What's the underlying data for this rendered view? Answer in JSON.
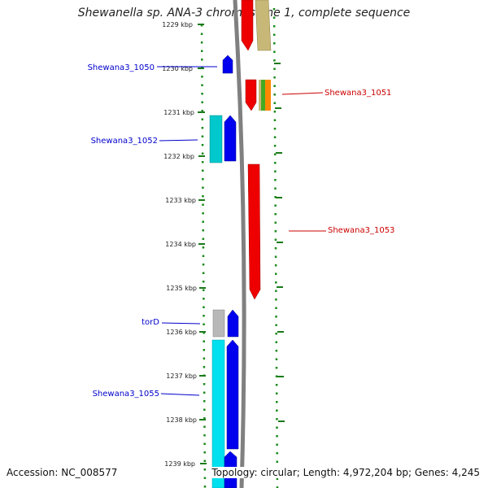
{
  "title": "Shewanella sp. ANA-3 chromosome 1, complete sequence",
  "accession": "Accession: NC_008577",
  "topology": "Topology: circular; Length: 4,972,204 bp; Genes: 4,245",
  "ticks": [
    "1229 kbp",
    "1230 kbp",
    "1231 kbp",
    "1232 kbp",
    "1233 kbp",
    "1234 kbp",
    "1235 kbp",
    "1236 kbp",
    "1237 kbp",
    "1238 kbp",
    "1239 kbp"
  ],
  "gene_labels": [
    {
      "text": "Shewana3_1050",
      "color": "#0000cc"
    },
    {
      "text": "Shewana3_1051",
      "color": "#cc0000"
    },
    {
      "text": "Shewana3_1052",
      "color": "#0000cc"
    },
    {
      "text": "Shewana3_1053",
      "color": "#cc0000"
    },
    {
      "text": "torD",
      "color": "#0000cc"
    },
    {
      "text": "Shewana3_1055",
      "color": "#0000cc"
    }
  ],
  "colors": {
    "backbone": "#7a7a7a",
    "tick": "#1a7a1a",
    "forward_cds": "#0000ee",
    "reverse_cds": "#ee0000",
    "cyan_feature": "#00c8cc",
    "tan_feature": "#c8b878",
    "gray_feature": "#b8b8b8",
    "green_feature": "#44aa22",
    "orange_feature": "#ff8800"
  }
}
